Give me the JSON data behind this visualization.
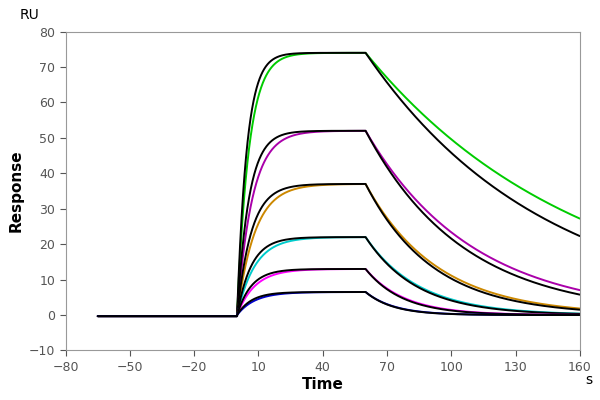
{
  "xlim": [
    -80,
    160
  ],
  "ylim": [
    -10,
    80
  ],
  "xticks": [
    -80,
    -50,
    -20,
    10,
    40,
    70,
    100,
    130,
    160
  ],
  "yticks": [
    -10,
    0,
    10,
    20,
    30,
    40,
    50,
    60,
    70,
    80
  ],
  "xlabel": "Time",
  "ylabel": "Response",
  "xlabel_unit": "s",
  "ylabel_unit": "RU",
  "assoc_start": 0,
  "assoc_end": 60,
  "dissoc_end": 160,
  "baseline_start": -65,
  "curves": [
    {
      "color": "#00CC00",
      "Rmax": 74,
      "ka": 0.18,
      "kd": 0.01,
      "label": "green"
    },
    {
      "color": "#000000",
      "Rmax": 74,
      "ka": 0.22,
      "kd": 0.012,
      "label": "black_fit1"
    },
    {
      "color": "#AA00AA",
      "Rmax": 52,
      "ka": 0.14,
      "kd": 0.02,
      "label": "purple"
    },
    {
      "color": "#000000",
      "Rmax": 52,
      "ka": 0.18,
      "kd": 0.022,
      "label": "black_fit2"
    },
    {
      "color": "#CC8800",
      "Rmax": 37,
      "ka": 0.12,
      "kd": 0.03,
      "label": "orange"
    },
    {
      "color": "#000000",
      "Rmax": 37,
      "ka": 0.15,
      "kd": 0.032,
      "label": "black_fit3"
    },
    {
      "color": "#00CCCC",
      "Rmax": 22,
      "ka": 0.12,
      "kd": 0.04,
      "label": "cyan"
    },
    {
      "color": "#000000",
      "Rmax": 22,
      "ka": 0.15,
      "kd": 0.042,
      "label": "black_fit4"
    },
    {
      "color": "#FF00FF",
      "Rmax": 13,
      "ka": 0.12,
      "kd": 0.055,
      "label": "magenta"
    },
    {
      "color": "#000000",
      "Rmax": 13,
      "ka": 0.15,
      "kd": 0.058,
      "label": "black_fit5"
    },
    {
      "color": "#0000CC",
      "Rmax": 6.5,
      "ka": 0.12,
      "kd": 0.075,
      "label": "blue"
    },
    {
      "color": "#000000",
      "Rmax": 6.5,
      "ka": 0.15,
      "kd": 0.078,
      "label": "black_fit6"
    }
  ],
  "background_color": "#ffffff",
  "linewidth": 1.4,
  "spine_color": "#999999",
  "tick_color": "#555555",
  "label_fontsize": 11,
  "tick_fontsize": 9
}
